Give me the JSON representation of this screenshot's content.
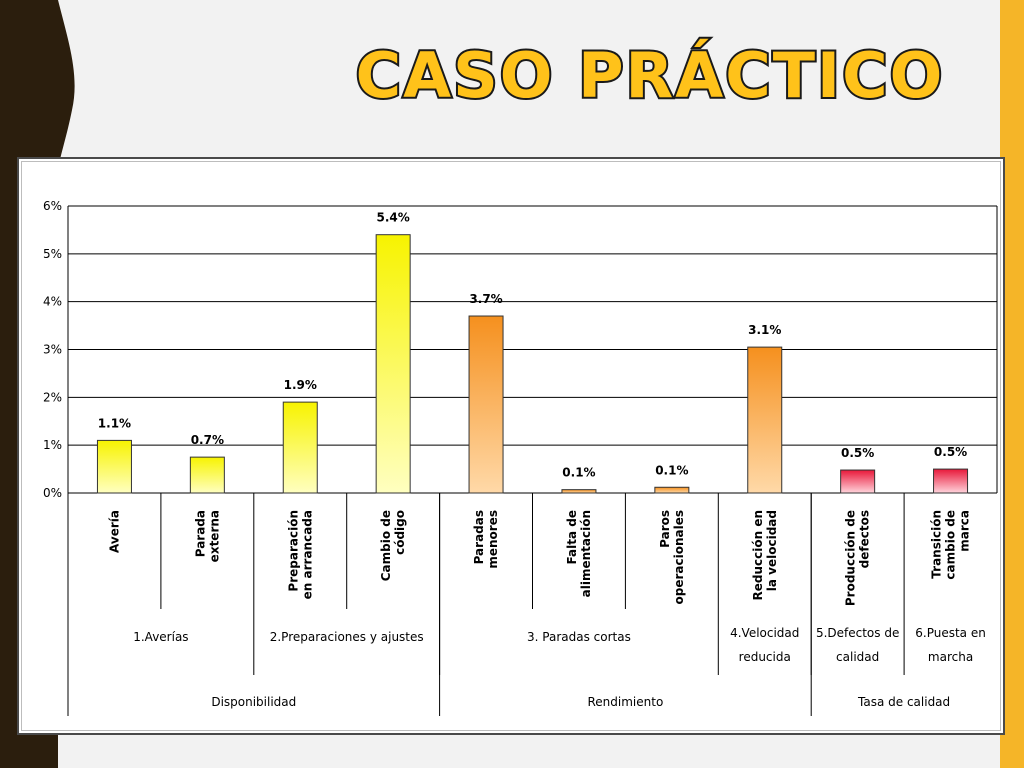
{
  "slide": {
    "title": "CASO PRÁCTICO",
    "colors": {
      "title_fill": "#ffc21a",
      "title_stroke": "#1a1a1a",
      "dark_band": "#2b1e0d",
      "accent_band": "#f5b528"
    }
  },
  "chart_data": {
    "type": "bar",
    "title": "",
    "xlabel": "",
    "ylabel": "",
    "ylim": [
      0,
      6
    ],
    "y_ticks": [
      "0%",
      "1%",
      "2%",
      "3%",
      "4%",
      "5%",
      "6%"
    ],
    "grid": true,
    "legend": "none",
    "categories": [
      {
        "label": [
          "Avería"
        ],
        "value": 1.1,
        "value_label": "1.1%",
        "color": "yellow"
      },
      {
        "label": [
          "Parada",
          "externa"
        ],
        "value": 0.75,
        "value_label": "0.7%",
        "color": "yellow"
      },
      {
        "label": [
          "Preparación",
          "en arrancada"
        ],
        "value": 1.9,
        "value_label": "1.9%",
        "color": "yellow"
      },
      {
        "label": [
          "Cambio de",
          "código"
        ],
        "value": 5.4,
        "value_label": "5.4%",
        "color": "yellow"
      },
      {
        "label": [
          "Paradas",
          "menores"
        ],
        "value": 3.7,
        "value_label": "3.7%",
        "color": "orange"
      },
      {
        "label": [
          "Falta de",
          "alimentación"
        ],
        "value": 0.07,
        "value_label": "0.1%",
        "color": "orange"
      },
      {
        "label": [
          "Paros",
          "operacionales"
        ],
        "value": 0.12,
        "value_label": "0.1%",
        "color": "orange"
      },
      {
        "label": [
          "Reducción en",
          "la velocidad"
        ],
        "value": 3.05,
        "value_label": "3.1%",
        "color": "orange"
      },
      {
        "label": [
          "Producción de",
          "defectos"
        ],
        "value": 0.48,
        "value_label": "0.5%",
        "color": "red"
      },
      {
        "label": [
          "Transición",
          "cambio de",
          "marca"
        ],
        "value": 0.5,
        "value_label": "0.5%",
        "color": "red"
      }
    ],
    "groups_level1": [
      {
        "label": [
          "1.Averías"
        ],
        "start": 0,
        "end": 1
      },
      {
        "label": [
          "2.Preparaciones y ajustes"
        ],
        "start": 2,
        "end": 3
      },
      {
        "label": [
          "3. Paradas cortas"
        ],
        "start": 4,
        "end": 6
      },
      {
        "label": [
          "4.Velocidad",
          "reducida"
        ],
        "start": 7,
        "end": 7
      },
      {
        "label": [
          "5.Defectos de",
          "calidad"
        ],
        "start": 8,
        "end": 8
      },
      {
        "label": [
          "6.Puesta en",
          "marcha"
        ],
        "start": 9,
        "end": 9
      }
    ],
    "groups_level2": [
      {
        "label": "Disponibilidad",
        "start": 0,
        "end": 3
      },
      {
        "label": "Rendimiento",
        "start": 4,
        "end": 7
      },
      {
        "label": "Tasa de calidad",
        "start": 8,
        "end": 9
      }
    ],
    "bar_colors": {
      "yellow": [
        "#f7f300",
        "#ffffc0"
      ],
      "orange": [
        "#f5901e",
        "#ffd9a8"
      ],
      "red": [
        "#e8183a",
        "#ffd4dc"
      ]
    }
  }
}
